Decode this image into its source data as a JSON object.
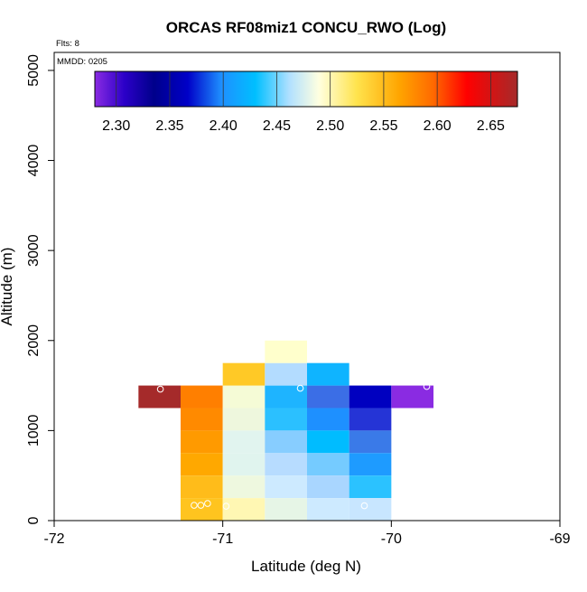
{
  "chart_data": {
    "type": "heatmap",
    "title": "ORCAS RF08miz1 CONCU_RWO (Log)",
    "corner_labels": {
      "flights": "Flts: 8",
      "date": "MMDD: 0205"
    },
    "xlabel": "Latitude (deg N)",
    "ylabel": "Altitude (m)",
    "xlim": [
      -72,
      -69
    ],
    "ylim": [
      0,
      5200
    ],
    "x_ticks": [
      -72,
      -71,
      -70,
      -69
    ],
    "x_tick_labels": [
      "-72",
      "-71",
      "-70",
      "-69"
    ],
    "y_ticks": [
      0,
      1000,
      2000,
      3000,
      4000,
      5000
    ],
    "y_tick_labels": [
      "0",
      "1000",
      "2000",
      "3000",
      "4000",
      "5000"
    ],
    "colorbar": {
      "range": [
        2.28,
        2.675
      ],
      "ticks": [
        2.3,
        2.35,
        2.4,
        2.45,
        2.5,
        2.55,
        2.6,
        2.65
      ],
      "tick_labels": [
        "2.30",
        "2.35",
        "2.40",
        "2.45",
        "2.50",
        "2.55",
        "2.60",
        "2.65"
      ],
      "colormap": [
        [
          0.0,
          "#8a2be2"
        ],
        [
          0.07,
          "#2b00c8"
        ],
        [
          0.14,
          "#00008b"
        ],
        [
          0.22,
          "#0000c8"
        ],
        [
          0.3,
          "#1e90ff"
        ],
        [
          0.38,
          "#00bfff"
        ],
        [
          0.46,
          "#b0e0ff"
        ],
        [
          0.53,
          "#ffffe0"
        ],
        [
          0.62,
          "#ffe34d"
        ],
        [
          0.72,
          "#ffa500"
        ],
        [
          0.8,
          "#ff6a00"
        ],
        [
          0.88,
          "#ff0000"
        ],
        [
          1.0,
          "#a52a2a"
        ]
      ]
    },
    "bin_width": 0.25,
    "bin_height": 250,
    "cells": [
      {
        "x": -71.5,
        "y": 1250,
        "color": "#a52a2a"
      },
      {
        "x": -71.25,
        "y": 1250,
        "color": "#ff7f00"
      },
      {
        "x": -71.0,
        "y": 1250,
        "color": "#f5fbd6"
      },
      {
        "x": -70.75,
        "y": 1250,
        "color": "#1eb4ff"
      },
      {
        "x": -70.5,
        "y": 1250,
        "color": "#3b6ee6"
      },
      {
        "x": -70.25,
        "y": 1250,
        "color": "#0000c0"
      },
      {
        "x": -70.0,
        "y": 1250,
        "color": "#8a2be2"
      },
      {
        "x": -71.0,
        "y": 1500,
        "color": "#ffc926"
      },
      {
        "x": -70.75,
        "y": 1500,
        "color": "#b3dcff"
      },
      {
        "x": -70.5,
        "y": 1500,
        "color": "#0fb4ff"
      },
      {
        "x": -70.75,
        "y": 1750,
        "color": "#ffffcc"
      },
      {
        "x": -71.25,
        "y": 1000,
        "color": "#ff8a00"
      },
      {
        "x": -71.0,
        "y": 1000,
        "color": "#eef7dd"
      },
      {
        "x": -70.75,
        "y": 1000,
        "color": "#2bc0ff"
      },
      {
        "x": -70.5,
        "y": 1000,
        "color": "#1e90ff"
      },
      {
        "x": -70.25,
        "y": 1000,
        "color": "#2534d6"
      },
      {
        "x": -71.25,
        "y": 750,
        "color": "#ff9a00"
      },
      {
        "x": -71.0,
        "y": 750,
        "color": "#e1f4ef"
      },
      {
        "x": -70.75,
        "y": 750,
        "color": "#87cdff"
      },
      {
        "x": -70.5,
        "y": 750,
        "color": "#00bcff"
      },
      {
        "x": -70.25,
        "y": 750,
        "color": "#3a7ae8"
      },
      {
        "x": -71.25,
        "y": 500,
        "color": "#ffa800"
      },
      {
        "x": -71.0,
        "y": 500,
        "color": "#e0f4ee"
      },
      {
        "x": -70.75,
        "y": 500,
        "color": "#b7dcff"
      },
      {
        "x": -70.5,
        "y": 500,
        "color": "#75cbff"
      },
      {
        "x": -70.25,
        "y": 500,
        "color": "#1e9bff"
      },
      {
        "x": -71.25,
        "y": 250,
        "color": "#ffbc1a"
      },
      {
        "x": -71.0,
        "y": 250,
        "color": "#eef8df"
      },
      {
        "x": -70.75,
        "y": 250,
        "color": "#cdeaff"
      },
      {
        "x": -70.5,
        "y": 250,
        "color": "#a9d6ff"
      },
      {
        "x": -70.25,
        "y": 250,
        "color": "#2bc2ff"
      },
      {
        "x": -71.25,
        "y": 0,
        "color": "#ffc41f"
      },
      {
        "x": -71.0,
        "y": 0,
        "color": "#fff7b3"
      },
      {
        "x": -70.75,
        "y": 0,
        "color": "#e6f5e6"
      },
      {
        "x": -70.5,
        "y": 0,
        "color": "#cdeaff"
      },
      {
        "x": -70.25,
        "y": 0,
        "color": "#c8e6ff"
      }
    ],
    "points": [
      {
        "x": -71.37,
        "y": 1460
      },
      {
        "x": -70.54,
        "y": 1470
      },
      {
        "x": -69.79,
        "y": 1490
      },
      {
        "x": -71.17,
        "y": 170
      },
      {
        "x": -71.13,
        "y": 170
      },
      {
        "x": -71.09,
        "y": 190
      },
      {
        "x": -70.98,
        "y": 160
      },
      {
        "x": -70.16,
        "y": 165
      }
    ]
  }
}
